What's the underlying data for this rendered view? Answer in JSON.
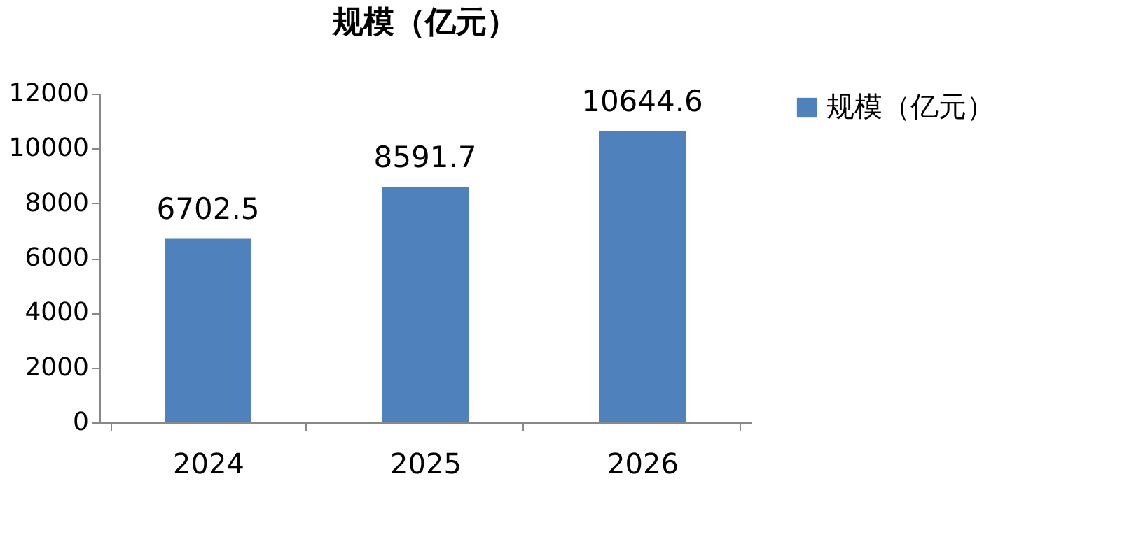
{
  "chart_data": {
    "type": "bar",
    "title": "规模（亿元）",
    "categories": [
      "2024",
      "2025",
      "2026"
    ],
    "series": [
      {
        "name": "规模（亿元）",
        "color": "#4f81bd",
        "values": [
          6702.5,
          8591.7,
          10644.6
        ]
      }
    ],
    "ylim": [
      0,
      12000
    ],
    "yticks": [
      0,
      2000,
      4000,
      6000,
      8000,
      10000,
      12000
    ],
    "grid": false,
    "legend": "right",
    "data_labels": true
  }
}
